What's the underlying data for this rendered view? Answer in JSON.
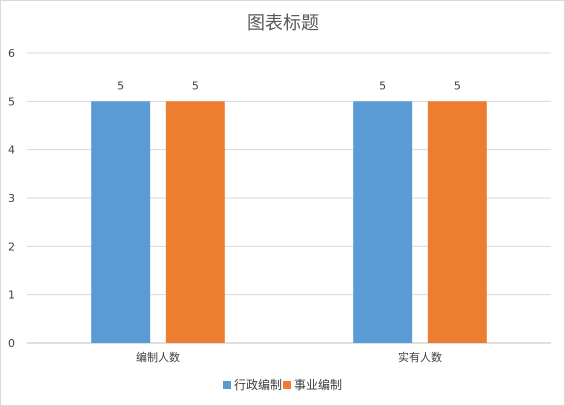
{
  "chart_data": {
    "type": "bar",
    "title": "图表标题",
    "categories": [
      "编制人数",
      "实有人数"
    ],
    "series": [
      {
        "name": "行政编制",
        "values": [
          5,
          5
        ],
        "color": "#5b9bd5"
      },
      {
        "name": "事业编制",
        "values": [
          5,
          5
        ],
        "color": "#ed7d31"
      }
    ],
    "ylim": [
      0,
      6
    ],
    "yticks": [
      0,
      1,
      2,
      3,
      4,
      5,
      6
    ],
    "grid": true,
    "legend_position": "bottom",
    "data_labels": true,
    "xlabel": "",
    "ylabel": ""
  }
}
